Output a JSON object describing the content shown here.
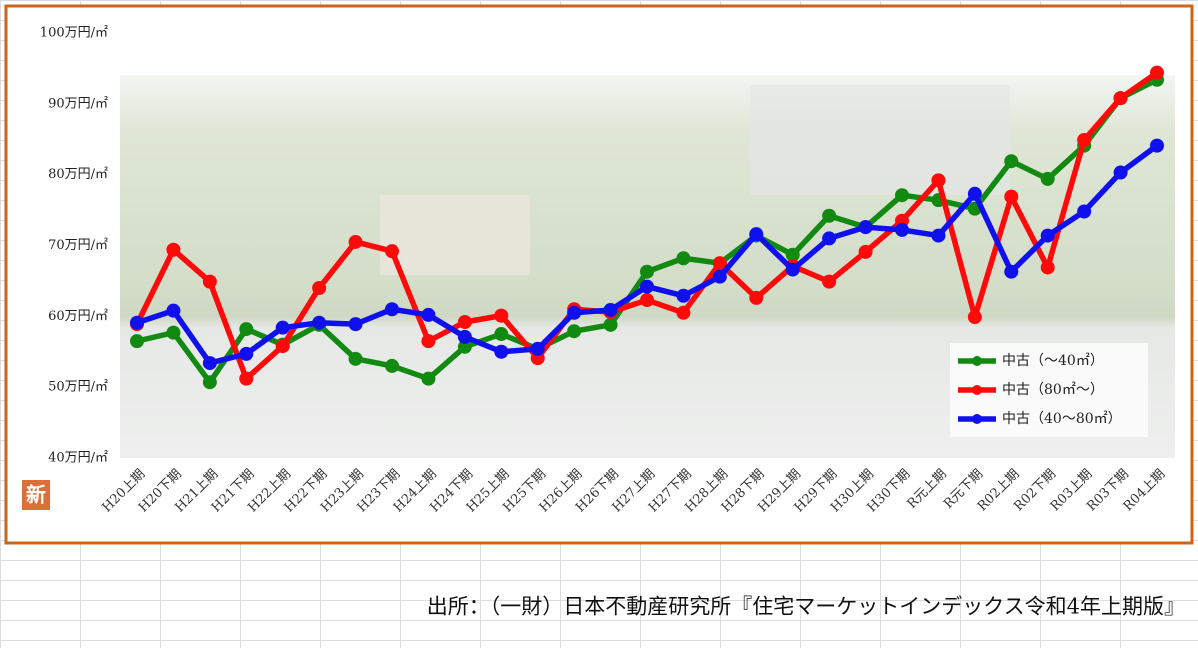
{
  "chart_data": {
    "type": "line",
    "categories": [
      "H20上期",
      "H20下期",
      "H21上期",
      "H21下期",
      "H22上期",
      "H22下期",
      "H23上期",
      "H23下期",
      "H24上期",
      "H24下期",
      "H25上期",
      "H25下期",
      "H26上期",
      "H26下期",
      "H27上期",
      "H27下期",
      "H28上期",
      "H28下期",
      "H29上期",
      "H29下期",
      "H30上期",
      "H30下期",
      "R元上期",
      "R元下期",
      "R02上期",
      "R02下期",
      "R03上期",
      "R03下期",
      "R04上期"
    ],
    "series": [
      {
        "name": "中古（～40㎡）",
        "color": "#128a12",
        "values": [
          56.5,
          57.7,
          50.7,
          58.2,
          56.0,
          58.8,
          54.0,
          53.0,
          51.2,
          55.7,
          57.5,
          55.4,
          57.9,
          58.8,
          66.3,
          68.2,
          67.5,
          71.4,
          68.7,
          74.2,
          72.6,
          77.1,
          76.4,
          75.2,
          81.9,
          79.4,
          84.1,
          90.8,
          93.4
        ]
      },
      {
        "name": "中古（80㎡～）",
        "color": "#ff0a0a",
        "values": [
          58.9,
          69.4,
          64.9,
          51.2,
          55.8,
          64.0,
          70.5,
          69.2,
          56.5,
          59.2,
          60.1,
          54.1,
          61.0,
          60.6,
          62.3,
          60.5,
          67.5,
          62.6,
          67.1,
          64.9,
          69.1,
          73.5,
          79.2,
          59.9,
          76.9,
          66.9,
          84.9,
          90.8,
          94.4
        ]
      },
      {
        "name": "中古（40～80㎡）",
        "color": "#1010ee",
        "values": [
          59.1,
          60.8,
          53.4,
          54.7,
          58.4,
          59.1,
          58.9,
          61.0,
          60.2,
          57.1,
          55.0,
          55.4,
          60.5,
          60.9,
          64.2,
          62.9,
          65.6,
          71.6,
          66.6,
          71.0,
          72.6,
          72.2,
          71.4,
          77.3,
          66.3,
          71.4,
          74.8,
          80.3,
          84.1
        ]
      }
    ],
    "ylim": [
      40,
      100
    ],
    "yticks": [
      {
        "value": 40,
        "label": "40万円/㎡"
      },
      {
        "value": 50,
        "label": "50万円/㎡"
      },
      {
        "value": 60,
        "label": "60万円/㎡"
      },
      {
        "value": 70,
        "label": "70万円/㎡"
      },
      {
        "value": 80,
        "label": "80万円/㎡"
      },
      {
        "value": 90,
        "label": "90万円/㎡"
      },
      {
        "value": 100,
        "label": "100万円/㎡"
      }
    ],
    "grid": false,
    "legend_position": "lower right",
    "badge": "新",
    "source": "出所：（一財）日本不動産研究所『住宅マーケットインデックス令和4年上期版』"
  }
}
